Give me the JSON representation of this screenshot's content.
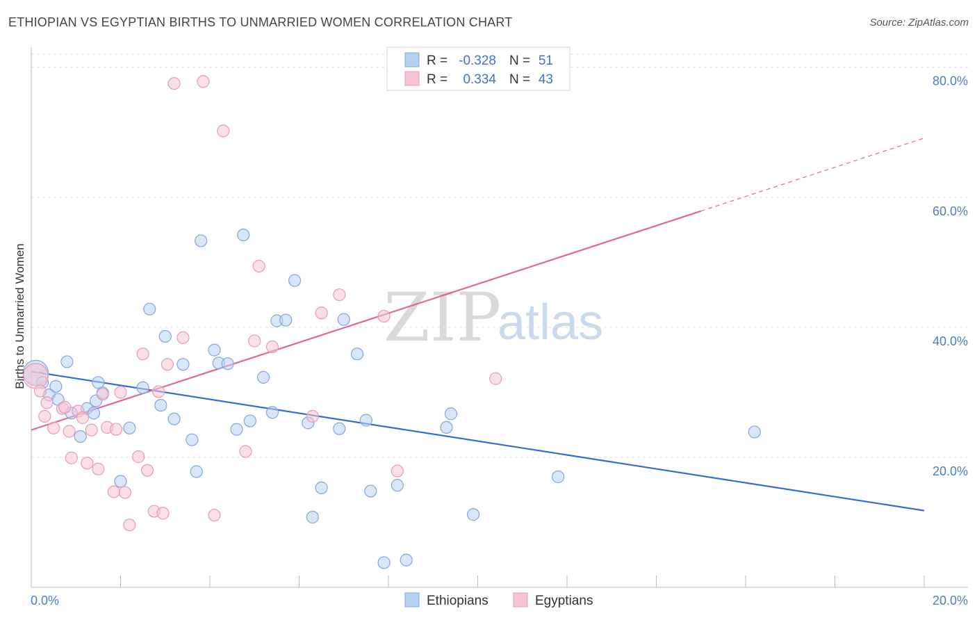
{
  "title": "ETHIOPIAN VS EGYPTIAN BIRTHS TO UNMARRIED WOMEN CORRELATION CHART",
  "source": "Source: ZipAtlas.com",
  "watermark": {
    "zip": "ZIP",
    "atlas": "atlas"
  },
  "colors": {
    "blue_fill": "#b9d1f1",
    "blue_stroke": "#7fa6dd",
    "blue_line": "#2f6fcf",
    "pink_fill": "#f6c4d4",
    "pink_stroke": "#e89ab4",
    "pink_line": "#e06892",
    "grid": "#dddddd",
    "tick_text": "#4a7ec6"
  },
  "legend": {
    "rows": [
      {
        "r_label": "R =",
        "r_value": "-0.328",
        "n_label": "N =",
        "n_value": "51"
      },
      {
        "r_label": "R =",
        "r_value": "0.334",
        "n_label": "N =",
        "n_value": "43"
      }
    ]
  },
  "chart_data": {
    "type": "scatter",
    "title": "ETHIOPIAN VS EGYPTIAN BIRTHS TO UNMARRIED WOMEN CORRELATION CHART",
    "xlabel": "",
    "ylabel": "Births to Unmarried Women",
    "xlim": [
      0,
      20
    ],
    "ylim": [
      0,
      82
    ],
    "x_tick_labels": [
      "0.0%",
      "20.0%"
    ],
    "y_ticks": [
      20,
      40,
      60,
      80
    ],
    "y_tick_labels": [
      "20.0%",
      "40.0%",
      "60.0%",
      "80.0%"
    ],
    "grid": true,
    "legend_position": "top-center",
    "series": [
      {
        "name": "Ethiopians",
        "color": "#b9d1f1",
        "trend": {
          "x": [
            0,
            20
          ],
          "y": [
            33.2,
            11.8
          ]
        },
        "points": [
          [
            0.1,
            33.0
          ],
          [
            0.25,
            31.5
          ],
          [
            0.4,
            29.6
          ],
          [
            0.55,
            30.9
          ],
          [
            0.6,
            28.9
          ],
          [
            0.9,
            26.8
          ],
          [
            1.1,
            23.2
          ],
          [
            1.25,
            27.5
          ],
          [
            1.4,
            26.8
          ],
          [
            1.45,
            28.7
          ],
          [
            0.8,
            34.7
          ],
          [
            1.5,
            31.5
          ],
          [
            1.6,
            29.9
          ],
          [
            2.2,
            24.5
          ],
          [
            2.0,
            16.3
          ],
          [
            2.5,
            30.7
          ],
          [
            2.65,
            42.8
          ],
          [
            2.9,
            28.0
          ],
          [
            3.0,
            38.6
          ],
          [
            3.2,
            25.9
          ],
          [
            3.4,
            34.3
          ],
          [
            3.6,
            22.7
          ],
          [
            3.7,
            17.8
          ],
          [
            3.8,
            53.3
          ],
          [
            4.1,
            36.5
          ],
          [
            4.2,
            34.5
          ],
          [
            4.4,
            34.4
          ],
          [
            4.6,
            24.3
          ],
          [
            4.75,
            54.2
          ],
          [
            4.9,
            25.6
          ],
          [
            5.2,
            32.3
          ],
          [
            5.4,
            26.9
          ],
          [
            5.5,
            41.0
          ],
          [
            5.7,
            41.1
          ],
          [
            5.9,
            47.2
          ],
          [
            6.2,
            25.3
          ],
          [
            6.3,
            10.8
          ],
          [
            6.5,
            15.3
          ],
          [
            6.9,
            24.4
          ],
          [
            7.0,
            41.2
          ],
          [
            7.3,
            35.9
          ],
          [
            7.5,
            25.7
          ],
          [
            7.6,
            14.8
          ],
          [
            7.9,
            3.8
          ],
          [
            8.2,
            15.7
          ],
          [
            8.4,
            4.2
          ],
          [
            9.3,
            24.6
          ],
          [
            9.4,
            26.7
          ],
          [
            9.9,
            11.2
          ],
          [
            11.8,
            17.0
          ],
          [
            16.2,
            23.9
          ]
        ]
      },
      {
        "name": "Egyptians",
        "color": "#f6c4d4",
        "trend": {
          "x": [
            0,
            20
          ],
          "y": [
            24.2,
            69.1
          ]
        },
        "points": [
          [
            0.1,
            32.5
          ],
          [
            0.2,
            30.2
          ],
          [
            0.3,
            26.3
          ],
          [
            0.35,
            28.4
          ],
          [
            0.5,
            24.5
          ],
          [
            0.7,
            27.5
          ],
          [
            0.75,
            27.7
          ],
          [
            0.85,
            24.0
          ],
          [
            0.9,
            19.9
          ],
          [
            1.05,
            27.1
          ],
          [
            1.15,
            26.1
          ],
          [
            1.25,
            19.1
          ],
          [
            1.35,
            24.2
          ],
          [
            1.5,
            18.2
          ],
          [
            1.6,
            29.7
          ],
          [
            1.7,
            24.6
          ],
          [
            1.85,
            14.7
          ],
          [
            1.9,
            24.3
          ],
          [
            2.0,
            30.0
          ],
          [
            2.1,
            14.6
          ],
          [
            2.2,
            9.6
          ],
          [
            2.4,
            20.1
          ],
          [
            2.5,
            35.9
          ],
          [
            2.6,
            18.0
          ],
          [
            2.75,
            11.7
          ],
          [
            2.85,
            30.1
          ],
          [
            2.95,
            11.4
          ],
          [
            3.05,
            34.3
          ],
          [
            3.2,
            77.5
          ],
          [
            3.4,
            38.4
          ],
          [
            3.85,
            77.8
          ],
          [
            4.1,
            11.1
          ],
          [
            4.3,
            70.2
          ],
          [
            4.8,
            20.9
          ],
          [
            5.0,
            37.9
          ],
          [
            5.1,
            49.4
          ],
          [
            5.4,
            37.0
          ],
          [
            6.3,
            26.3
          ],
          [
            6.5,
            42.2
          ],
          [
            6.9,
            45.0
          ],
          [
            7.9,
            41.7
          ],
          [
            10.4,
            32.1
          ],
          [
            8.2,
            17.9
          ]
        ]
      }
    ]
  }
}
